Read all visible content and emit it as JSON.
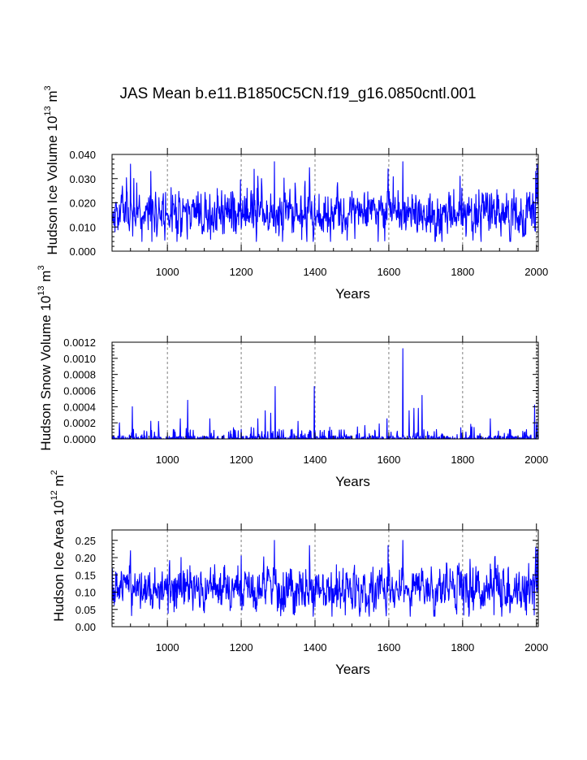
{
  "figure_title": "JAS Mean b.e11.B1850C5CN.f19_g16.0850cntl.001",
  "colors": {
    "series": "#0000ff",
    "axis": "#000000",
    "grid": "#808080"
  },
  "chart_data": [
    {
      "type": "line",
      "title": "JAS Mean b.e11.B1850C5CN.f19_g16.0850cntl.001",
      "xlabel": "Years",
      "ylabel": {
        "main": "Hudson Ice Volume 10",
        "exponent": "13",
        "unit": " m",
        "unit_exponent": "3"
      },
      "xlim": [
        850,
        2005
      ],
      "ylim": [
        0.0,
        0.04
      ],
      "xticks": [
        1000,
        1200,
        1400,
        1600,
        1800,
        2000
      ],
      "xtick_labels": [
        "1000",
        "1200",
        "1400",
        "1600",
        "1800",
        "2000"
      ],
      "yticks": [
        0.0,
        0.01,
        0.02,
        0.03,
        0.04
      ],
      "ytick_labels": [
        "0.000",
        "0.010",
        "0.020",
        "0.030",
        "0.040"
      ],
      "grid": "vertical dashed",
      "series": [
        {
          "name": "Hudson Ice Volume",
          "seed": 11,
          "base": 0.0155,
          "spread": 0.0045,
          "min": 0.004,
          "max": 0.037,
          "spikes": [
            [
              900,
              0.036
            ],
            [
              955,
              0.033
            ],
            [
              1198,
              0.0295
            ],
            [
              1245,
              0.031
            ],
            [
              1290,
              0.037
            ],
            [
              1385,
              0.0345
            ],
            [
              1395,
              0.004
            ],
            [
              1598,
              0.034
            ],
            [
              1638,
              0.037
            ],
            [
              1725,
              0.004
            ],
            [
              1793,
              0.031
            ],
            [
              1998,
              0.033
            ],
            [
              2002,
              0.036
            ]
          ]
        }
      ]
    },
    {
      "type": "line",
      "title": "",
      "xlabel": "Years",
      "ylabel": {
        "main": "Hudson Snow Volume 10",
        "exponent": "13",
        "unit": " m",
        "unit_exponent": "3"
      },
      "xlim": [
        850,
        2005
      ],
      "ylim": [
        0.0,
        0.0012
      ],
      "xticks": [
        1000,
        1200,
        1400,
        1600,
        1800,
        2000
      ],
      "xtick_labels": [
        "1000",
        "1200",
        "1400",
        "1600",
        "1800",
        "2000"
      ],
      "yticks": [
        0.0,
        0.0002,
        0.0004,
        0.0006,
        0.0008,
        0.001,
        0.0012
      ],
      "ytick_labels": [
        "0.0000",
        "0.0002",
        "0.0004",
        "0.0006",
        "0.0008",
        "0.0010",
        "0.0012"
      ],
      "grid": "vertical dashed",
      "series": [
        {
          "name": "Hudson Snow Volume",
          "seed": 23,
          "base": 0.0,
          "spread": 0.0,
          "min": 0.0,
          "max": 0.00115,
          "sparse": true,
          "spikes": [
            [
              870,
              0.0002
            ],
            [
              905,
              0.0004
            ],
            [
              955,
              0.00022
            ],
            [
              1035,
              0.00025
            ],
            [
              1055,
              0.00048
            ],
            [
              1115,
              0.00025
            ],
            [
              1200,
              0.00012
            ],
            [
              1245,
              0.00025
            ],
            [
              1265,
              0.00035
            ],
            [
              1280,
              0.00032
            ],
            [
              1292,
              0.00065
            ],
            [
              1398,
              0.00065
            ],
            [
              1515,
              0.00015
            ],
            [
              1595,
              0.00025
            ],
            [
              1638,
              0.00112
            ],
            [
              1655,
              0.00035
            ],
            [
              1668,
              0.00038
            ],
            [
              1680,
              0.00038
            ],
            [
              1690,
              0.00054
            ],
            [
              1825,
              0.00015
            ],
            [
              1875,
              0.00025
            ],
            [
              1995,
              0.00042
            ]
          ]
        }
      ]
    },
    {
      "type": "line",
      "title": "",
      "xlabel": "Years",
      "ylabel": {
        "main": "Hudson Ice Area 10",
        "exponent": "12",
        "unit": " m",
        "unit_exponent": "2"
      },
      "xlim": [
        850,
        2005
      ],
      "ylim": [
        0.0,
        0.28
      ],
      "xticks": [
        1000,
        1200,
        1400,
        1600,
        1800,
        2000
      ],
      "xtick_labels": [
        "1000",
        "1200",
        "1400",
        "1600",
        "1800",
        "2000"
      ],
      "yticks": [
        0.0,
        0.05,
        0.1,
        0.15,
        0.2,
        0.25
      ],
      "ytick_labels": [
        "0.00",
        "0.05",
        "0.10",
        "0.15",
        "0.20",
        "0.25"
      ],
      "grid": "vertical dashed",
      "series": [
        {
          "name": "Hudson Ice Area",
          "seed": 37,
          "base": 0.105,
          "spread": 0.03,
          "min": 0.03,
          "max": 0.25,
          "spikes": [
            [
              900,
              0.22
            ],
            [
              1200,
              0.205
            ],
            [
              1290,
              0.25
            ],
            [
              1385,
              0.235
            ],
            [
              1395,
              0.03
            ],
            [
              1598,
              0.235
            ],
            [
              1638,
              0.25
            ],
            [
              1725,
              0.03
            ],
            [
              1998,
              0.23
            ],
            [
              2002,
              0.225
            ]
          ]
        }
      ]
    }
  ]
}
